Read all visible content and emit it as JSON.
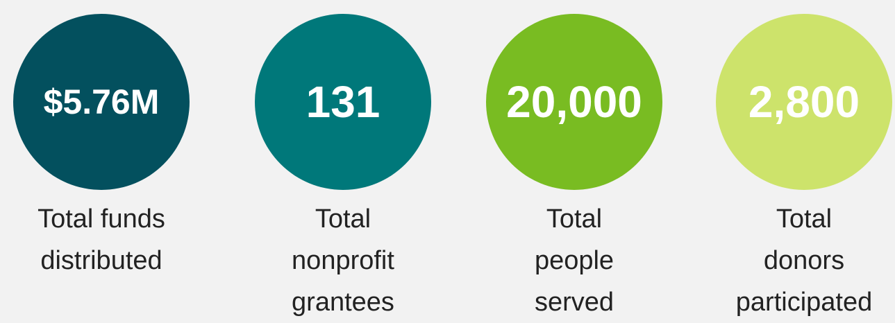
{
  "stats": [
    {
      "value": "$5.76M",
      "label_lines": [
        "Total funds",
        "distributed"
      ],
      "color": "#03505e"
    },
    {
      "value": "131",
      "label_lines": [
        "Total",
        "nonprofit",
        "grantees"
      ],
      "color": "#00787a"
    },
    {
      "value": "20,000",
      "label_lines": [
        "Total",
        "people",
        "served"
      ],
      "color": "#79bc22"
    },
    {
      "value": "2,800",
      "label_lines": [
        "Total",
        "donors",
        "participated"
      ],
      "color": "#cde36b"
    }
  ]
}
